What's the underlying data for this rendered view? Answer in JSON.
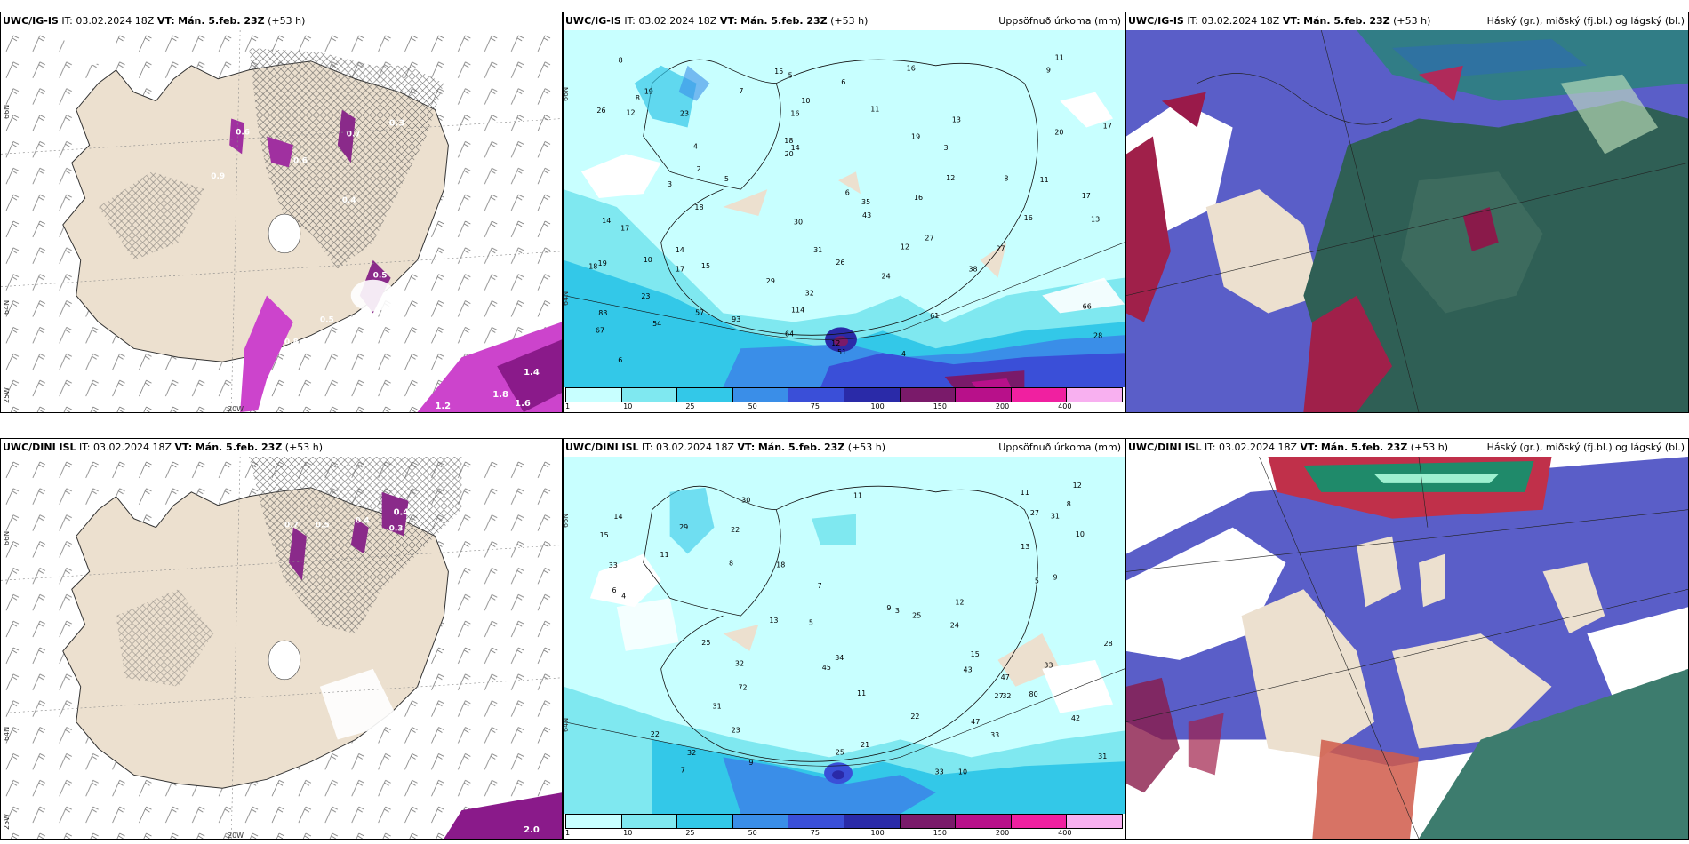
{
  "panels": [
    {
      "model": "UWC/IG-IS",
      "info": "IT: 03.02.2024 18Z",
      "vt_label": "VT:",
      "vt": "Mán. 5.feb. 23Z",
      "lead": "(+53 h)",
      "right": ""
    },
    {
      "model": "UWC/IG-IS",
      "info": "IT: 03.02.2024 18Z",
      "vt_label": "VT:",
      "vt": "Mán. 5.feb. 23Z",
      "lead": "(+53 h)",
      "right": "Uppsöfnuð úrkoma (mm)"
    },
    {
      "model": "UWC/IG-IS",
      "info": "IT: 03.02.2024 18Z",
      "vt_label": "VT:",
      "vt": "Mán. 5.feb. 23Z",
      "lead": "(+53 h)",
      "right": "Háský (gr.), miðský (fj.bl.) og lágský (bl.)"
    },
    {
      "model": "UWC/DINI ISL",
      "info": "IT: 03.02.2024 18Z",
      "vt_label": "VT:",
      "vt": "Mán. 5.feb. 23Z",
      "lead": "(+53 h)",
      "right": ""
    },
    {
      "model": "UWC/DINI ISL",
      "info": "IT: 03.02.2024 18Z",
      "vt_label": "VT:",
      "vt": "Mán. 5.feb. 23Z",
      "lead": "(+53 h)",
      "right": "Uppsöfnuð úrkoma (mm)"
    },
    {
      "model": "UWC/DINI ISL",
      "info": "IT: 03.02.2024 18Z",
      "vt_label": "VT:",
      "vt": "Mán. 5.feb. 23Z",
      "lead": "(+53 h)",
      "right": "Háský (gr.), miðský (fj.bl.) og lágský (bl.)"
    }
  ],
  "colorbar": {
    "ticks": [
      "1",
      "10",
      "25",
      "50",
      "75",
      "100",
      "150",
      "200",
      "400"
    ],
    "colors": [
      "#c8ffff",
      "#7fe8f0",
      "#33c8e8",
      "#3a8ee8",
      "#3a4fd8",
      "#2a2aa8",
      "#7a1a6a",
      "#b8108a",
      "#f020a0",
      "#f8b0f0"
    ]
  },
  "graticule": {
    "lat_top": "66N",
    "lat_mid": "64N",
    "lon_left": "25W",
    "lon_bottom": "20W",
    "lat_mid_vert": "64N"
  },
  "precip_top": [
    "9",
    "8",
    "11",
    "15",
    "16",
    "19",
    "5",
    "6",
    "8",
    "7",
    "26",
    "23",
    "10",
    "11",
    "13",
    "12",
    "16",
    "17",
    "19",
    "20",
    "18",
    "20",
    "14",
    "4",
    "3",
    "2",
    "8",
    "11",
    "12",
    "6",
    "5",
    "3",
    "16",
    "18",
    "17",
    "35",
    "14",
    "30",
    "43",
    "17",
    "16",
    "13",
    "27",
    "12",
    "14",
    "10",
    "19",
    "26",
    "27",
    "31",
    "15",
    "18",
    "17",
    "38",
    "23",
    "24",
    "29",
    "32",
    "66",
    "114",
    "93",
    "61",
    "57",
    "67",
    "83",
    "54",
    "28",
    "64",
    "51",
    "12",
    "6",
    "4"
  ],
  "precip_bottom": [
    "11",
    "12",
    "8",
    "11",
    "14",
    "30",
    "27",
    "22",
    "31",
    "29",
    "10",
    "15",
    "13",
    "18",
    "33",
    "11",
    "9",
    "8",
    "7",
    "5",
    "6",
    "4",
    "3",
    "12",
    "13",
    "5",
    "9",
    "25",
    "24",
    "28",
    "25",
    "15",
    "32",
    "34",
    "33",
    "47",
    "43",
    "45",
    "80",
    "72",
    "32",
    "27",
    "11",
    "31",
    "42",
    "47",
    "22",
    "22",
    "23",
    "33",
    "32",
    "25",
    "21",
    "31",
    "33",
    "10",
    "9",
    "7"
  ],
  "cloud_top_values": [
    "0.3",
    "0.7",
    "0.6",
    "0.9",
    "0.6",
    "0.4",
    "0.5",
    "0.8",
    "1.0",
    "0.5",
    "0.7",
    "1.2",
    "1.4",
    "1.8",
    "1.6"
  ],
  "cloud_bottom_values": [
    "0.4",
    "0.3",
    "0.4",
    "0.5",
    "0.7",
    "2.0"
  ]
}
